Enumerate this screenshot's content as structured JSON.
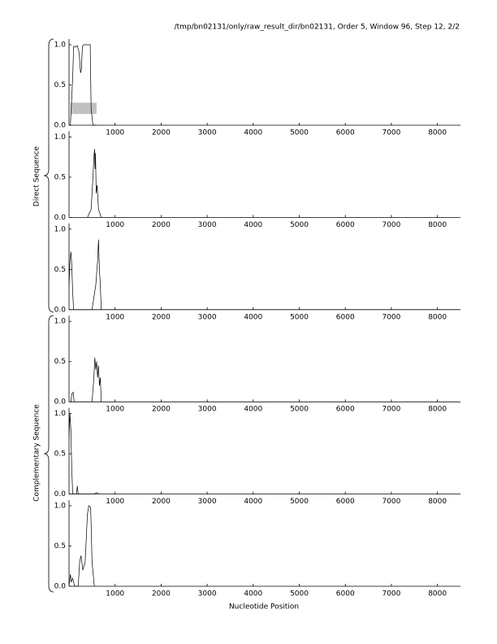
{
  "title": "/tmp/bn02131/only/raw_result_dir/bn02131, Order 5, Window 96, Step 12, 2/2",
  "x_label": "Nucleotide Position",
  "groups": [
    "Direct Sequence",
    "Complementary Sequence"
  ],
  "chart_data": [
    {
      "type": "line",
      "color": "#000000",
      "xlim": [
        0,
        8500
      ],
      "ylim": [
        0,
        1
      ],
      "xticks": [
        1000,
        2000,
        3000,
        4000,
        5000,
        6000,
        7000,
        8000
      ],
      "yticks": [
        {
          "value": 0,
          "label": "0.0"
        },
        {
          "value": 0.5,
          "label": "0.5"
        },
        {
          "value": 1,
          "label": "1.0"
        }
      ],
      "x": [
        30,
        80,
        100,
        140,
        180,
        220,
        250,
        270,
        290,
        320,
        400,
        460,
        480,
        520,
        600
      ],
      "values": [
        0,
        0.6,
        0.98,
        0.97,
        0.99,
        0.9,
        0.65,
        0.7,
        0.98,
        1.0,
        1.0,
        1.0,
        0.2,
        0,
        0
      ],
      "region": {
        "x": [
          35,
          598
        ],
        "y": [
          0.14,
          0.28
        ],
        "color": "#c0c0c0"
      }
    },
    {
      "type": "line",
      "color": "#000000",
      "xlim": [
        0,
        8500
      ],
      "ylim": [
        0,
        1
      ],
      "xticks": [
        1000,
        2000,
        3000,
        4000,
        5000,
        6000,
        7000,
        8000
      ],
      "yticks": [
        {
          "value": 0,
          "label": "0.0"
        },
        {
          "value": 0.5,
          "label": "0.5"
        },
        {
          "value": 1,
          "label": "1.0"
        }
      ],
      "x": [
        400,
        480,
        520,
        540,
        555,
        565,
        575,
        590,
        610,
        640,
        700
      ],
      "values": [
        0,
        0.1,
        0.5,
        0.75,
        0.85,
        0.6,
        0.8,
        0.3,
        0.4,
        0.1,
        0
      ]
    },
    {
      "type": "line",
      "color": "#000000",
      "xlim": [
        0,
        8500
      ],
      "ylim": [
        0,
        1
      ],
      "xticks": [
        1000,
        2000,
        3000,
        4000,
        5000,
        6000,
        7000,
        8000
      ],
      "yticks": [
        {
          "value": 0,
          "label": "0.0"
        },
        {
          "value": 0.5,
          "label": "0.5"
        },
        {
          "value": 1,
          "label": "1.0"
        }
      ],
      "x": [
        0,
        20,
        40,
        60,
        80,
        100,
        500,
        580,
        620,
        640,
        660,
        680,
        700
      ],
      "values": [
        0.3,
        0.6,
        0.72,
        0.55,
        0.2,
        0,
        0,
        0.3,
        0.6,
        0.87,
        0.5,
        0.3,
        0
      ]
    },
    {
      "type": "line",
      "color": "#000000",
      "xlim": [
        0,
        8500
      ],
      "ylim": [
        0,
        1
      ],
      "xticks": [
        1000,
        2000,
        3000,
        4000,
        5000,
        6000,
        7000,
        8000
      ],
      "yticks": [
        {
          "value": 0,
          "label": "0.0"
        },
        {
          "value": 0.5,
          "label": "0.5"
        },
        {
          "value": 1,
          "label": "1.0"
        }
      ],
      "x": [
        40,
        60,
        90,
        110,
        500,
        540,
        560,
        580,
        600,
        620,
        640,
        660,
        680,
        700
      ],
      "values": [
        0,
        0.1,
        0.12,
        0,
        0,
        0.3,
        0.55,
        0.4,
        0.5,
        0.3,
        0.45,
        0.2,
        0.3,
        0
      ]
    },
    {
      "type": "line",
      "color": "#000000",
      "xlim": [
        0,
        8500
      ],
      "ylim": [
        0,
        1
      ],
      "xticks": [
        1000,
        2000,
        3000,
        4000,
        5000,
        6000,
        7000,
        8000
      ],
      "yticks": [
        {
          "value": 0,
          "label": "0.0"
        },
        {
          "value": 0.5,
          "label": "0.5"
        },
        {
          "value": 1,
          "label": "1.0"
        }
      ],
      "x": [
        0,
        20,
        40,
        60,
        80,
        160,
        180,
        200,
        550,
        600,
        650
      ],
      "values": [
        0.7,
        1.0,
        0.8,
        0.3,
        0,
        0,
        0.1,
        0,
        0,
        0.02,
        0
      ]
    },
    {
      "type": "line",
      "color": "#000000",
      "xlim": [
        0,
        8500
      ],
      "ylim": [
        0,
        1
      ],
      "xticks": [
        1000,
        2000,
        3000,
        4000,
        5000,
        6000,
        7000,
        8000
      ],
      "yticks": [
        {
          "value": 0,
          "label": "0.0"
        },
        {
          "value": 0.5,
          "label": "0.5"
        },
        {
          "value": 1,
          "label": "1.0"
        }
      ],
      "x": [
        0,
        30,
        50,
        80,
        120,
        200,
        230,
        260,
        300,
        350,
        400,
        430,
        470,
        500,
        550
      ],
      "values": [
        0,
        0.15,
        0.05,
        0.1,
        0,
        0,
        0.3,
        0.38,
        0.2,
        0.3,
        0.9,
        1.0,
        0.98,
        0.3,
        0
      ]
    }
  ]
}
